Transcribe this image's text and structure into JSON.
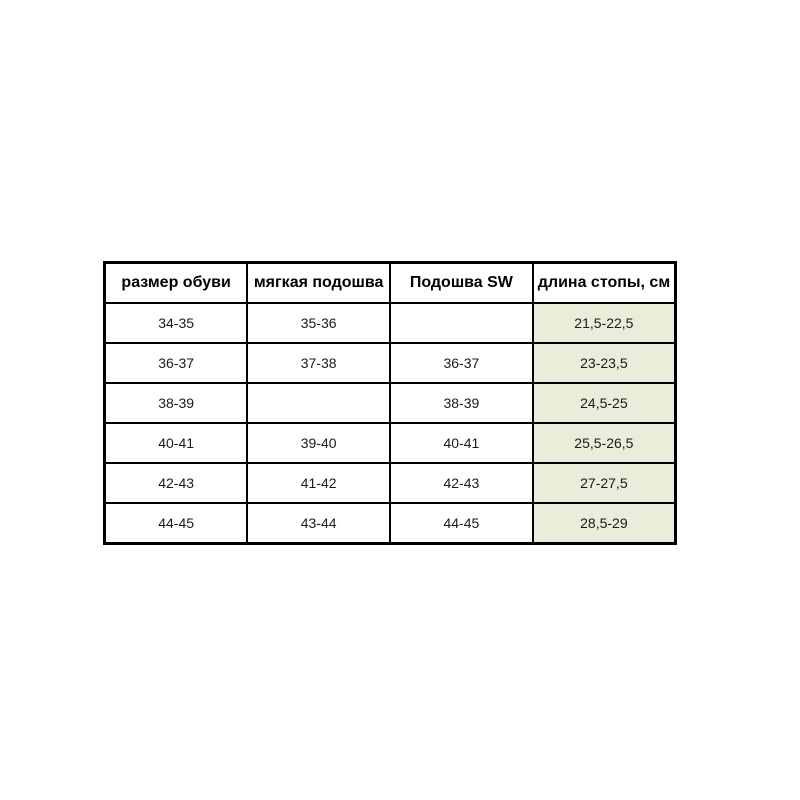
{
  "chart_data": {
    "type": "table",
    "title": "",
    "headers": [
      "размер обуви",
      "мягкая подошва",
      "Подошва SW",
      "длина стопы, см"
    ],
    "rows": [
      [
        "34-35",
        "35-36",
        "",
        "21,5-22,5"
      ],
      [
        "36-37",
        "37-38",
        "36-37",
        "23-23,5"
      ],
      [
        "38-39",
        "",
        "38-39",
        "24,5-25"
      ],
      [
        "40-41",
        "39-40",
        "40-41",
        "25,5-26,5"
      ],
      [
        "42-43",
        "41-42",
        "42-43",
        "27-27,5"
      ],
      [
        "44-45",
        "43-44",
        "44-45",
        "28,5-29"
      ]
    ],
    "highlight_column": 3,
    "colors": {
      "highlight_cell_background": "#eaedda",
      "border": "#000000",
      "text": "#1a1a1a",
      "page_background": "#ffffff"
    }
  }
}
